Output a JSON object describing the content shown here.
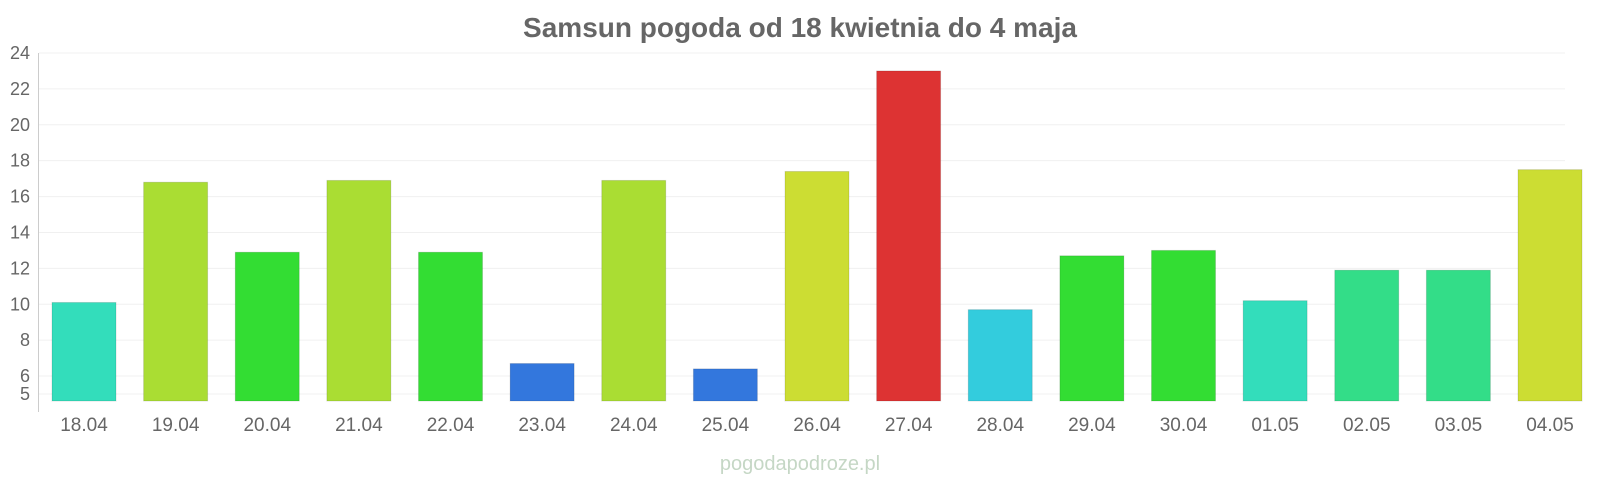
{
  "chart_data": {
    "type": "bar",
    "title": "Samsun pogoda od 18 kwietnia do 4 maja",
    "xlabel": "",
    "ylabel": "",
    "ylim": [
      5,
      24
    ],
    "yticks": [
      5,
      6,
      8,
      10,
      12,
      14,
      16,
      18,
      20,
      22,
      24
    ],
    "grid": true,
    "categories": [
      "18.04",
      "19.04",
      "20.04",
      "21.04",
      "22.04",
      "23.04",
      "24.04",
      "25.04",
      "26.04",
      "27.04",
      "28.04",
      "29.04",
      "30.04",
      "01.05",
      "02.05",
      "03.05",
      "04.05"
    ],
    "values": [
      10.1,
      16.8,
      12.9,
      16.9,
      12.9,
      6.7,
      16.9,
      6.4,
      17.4,
      23.0,
      9.7,
      12.7,
      13.0,
      10.2,
      11.9,
      11.9,
      17.5
    ],
    "colors": [
      "#33ddbb",
      "#aadd33",
      "#33dd33",
      "#aadd33",
      "#33dd33",
      "#3377dd",
      "#aadd33",
      "#3377dd",
      "#ccdd33",
      "#dd3333",
      "#33ccdd",
      "#33dd33",
      "#33dd33",
      "#33ddbb",
      "#33dd88",
      "#33dd88",
      "#ccdd33"
    ]
  },
  "watermark": "pogodapodroze.pl"
}
